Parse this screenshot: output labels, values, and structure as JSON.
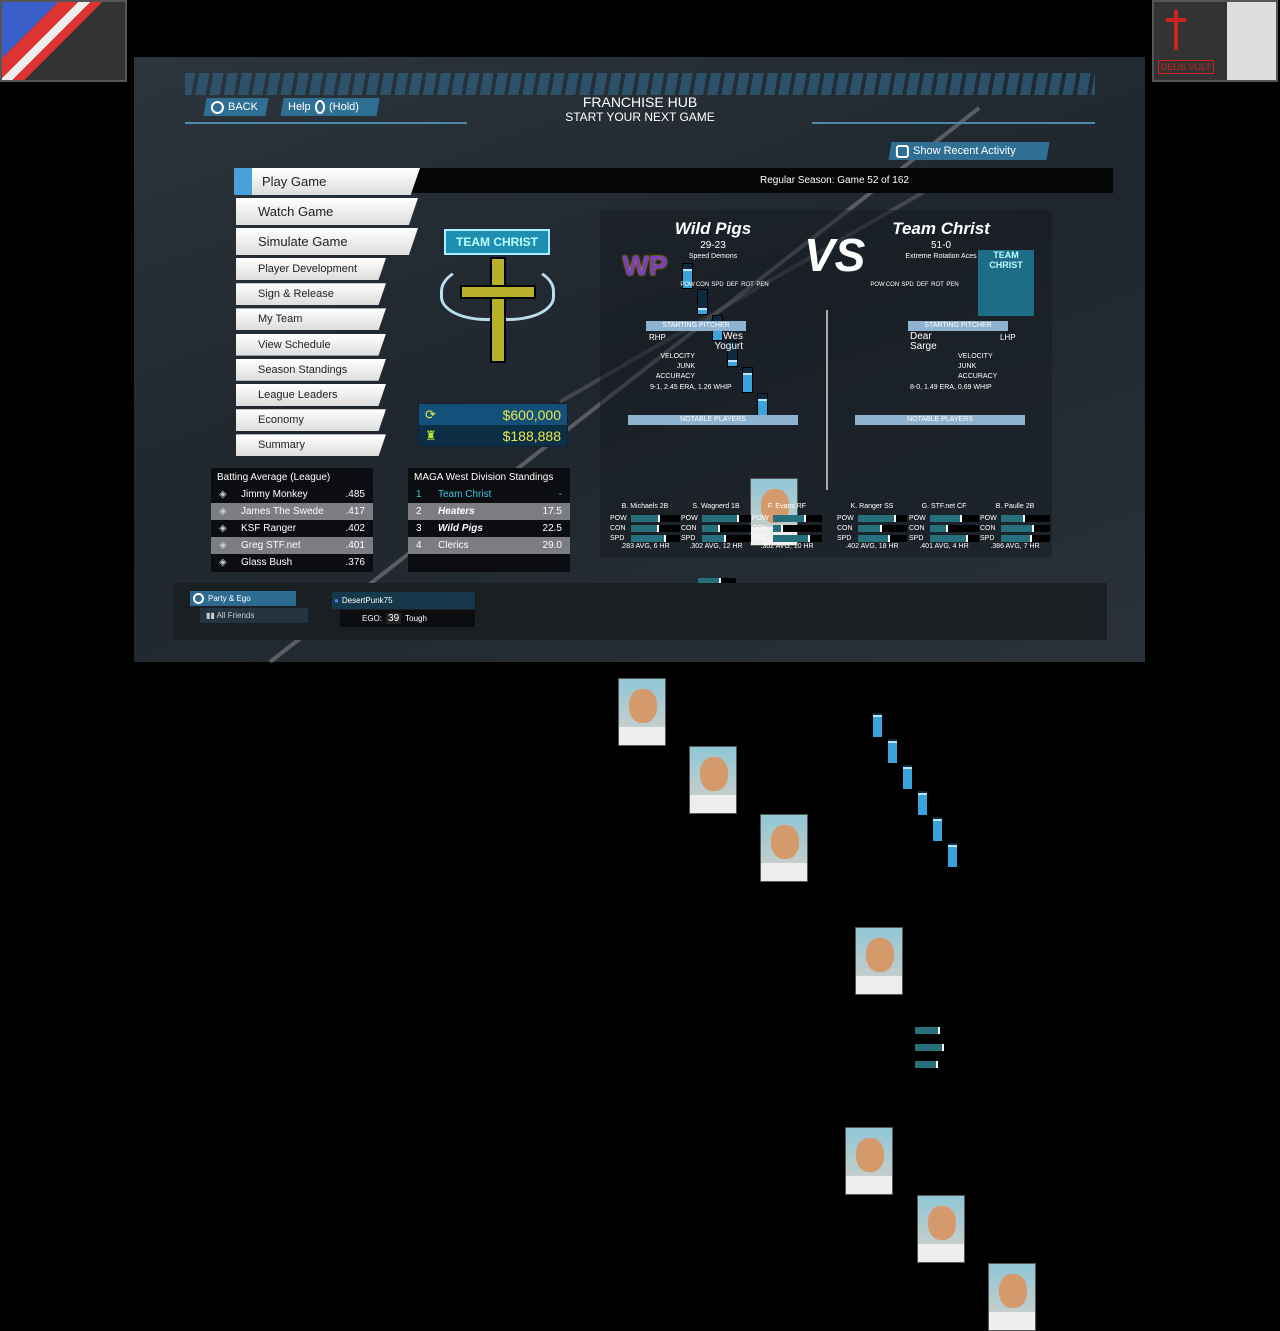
{
  "header": {
    "back_label": "BACK",
    "help_label": "Help",
    "help_hold": "(Hold)",
    "title": "FRANCHISE HUB",
    "subtitle": "START YOUR NEXT GAME",
    "recent_activity": "Show Recent Activity"
  },
  "season_status": "Regular Season: Game 52 of 162",
  "menu": [
    "Play Game",
    "Watch Game",
    "Simulate Game",
    "Player Development",
    "Sign & Release",
    "My Team",
    "View Schedule",
    "Season Standings",
    "League Leaders",
    "Economy",
    "Summary"
  ],
  "team_logo_text": "TEAM CHRIST",
  "money": {
    "budget": "$600,000",
    "payroll": "$188,888",
    "accent": "#e8e84a"
  },
  "batting": {
    "title": "Batting Average (League)",
    "rows": [
      {
        "name": "Jimmy Monkey",
        "avg": ".485"
      },
      {
        "name": "James The Swede",
        "avg": ".417"
      },
      {
        "name": "KSF Ranger",
        "avg": ".402"
      },
      {
        "name": "Greg STF.net",
        "avg": ".401"
      },
      {
        "name": "Glass Bush",
        "avg": ".376"
      }
    ]
  },
  "standings": {
    "title": "MAGA West Division Standings",
    "rows": [
      {
        "rank": "1",
        "team": "Team Christ",
        "gb": "-"
      },
      {
        "rank": "2",
        "team": "Heaters",
        "gb": "17.5"
      },
      {
        "rank": "3",
        "team": "Wild Pigs",
        "gb": "22.5"
      },
      {
        "rank": "4",
        "team": "Clerics",
        "gb": "29.0"
      }
    ]
  },
  "vs": "VS",
  "rating_labels": [
    "POW",
    "CON",
    "SPD",
    "DEF",
    "ROT",
    "PEN"
  ],
  "pitcher_labels": [
    "VELOCITY",
    "JUNK",
    "ACCURACY"
  ],
  "section_labels": {
    "pitcher": "STARTING PITCHER",
    "notable": "NOTABLE PLAYERS"
  },
  "stat_labels": [
    "POW",
    "CON",
    "SPD"
  ],
  "away": {
    "name": "Wild Pigs",
    "record": "29-23",
    "style": "Speed Demons",
    "logo_text": "WP",
    "ratings": [
      0.8,
      0.25,
      0.8,
      0.25,
      0.8,
      0.8
    ],
    "pitcher": {
      "hand": "RHP",
      "first": "Wes",
      "last": "Yogurt",
      "ratings": [
        0.6,
        0.6,
        0.65
      ],
      "line": "9-1, 2.45 ERA, 1.26 WHIP"
    },
    "players": [
      {
        "name": "B. Michaels",
        "pos": "2B",
        "stats": [
          0.6,
          0.58,
          0.72
        ],
        "line": ".283 AVG, 6 HR"
      },
      {
        "name": "S. Wagnerd",
        "pos": "1B",
        "stats": [
          0.75,
          0.38,
          0.5
        ],
        "line": ".302 AVG, 12 HR"
      },
      {
        "name": "F. Evans",
        "pos": "RF",
        "stats": [
          0.68,
          0.2,
          0.76
        ],
        "line": ".302 AVG, 10 HR"
      }
    ]
  },
  "home": {
    "name": "Team Christ",
    "record": "51-0",
    "style": "Extreme Rotation Aces",
    "logo_text": "TEAM CHRIST",
    "ratings": [
      0.9,
      0.9,
      0.9,
      0.9,
      0.9,
      0.9
    ],
    "pitcher": {
      "hand": "LHP",
      "first": "Dear",
      "last": "Sarge",
      "ratings": [
        0.65,
        0.75,
        0.6
      ],
      "line": "8-0, 1.49 ERA, 0.69 WHIP"
    },
    "players": [
      {
        "name": "K. Ranger",
        "pos": "SS",
        "stats": [
          0.78,
          0.5,
          0.66
        ],
        "line": ".402 AVG, 18 HR"
      },
      {
        "name": "G. STF.net",
        "pos": "CF",
        "stats": [
          0.66,
          0.38,
          0.77
        ],
        "line": ".401 AVG, 4 HR"
      },
      {
        "name": "B. Paulle",
        "pos": "2B",
        "stats": [
          0.5,
          0.67,
          0.64
        ],
        "line": ".386 AVG, 7 HR"
      }
    ]
  },
  "social": {
    "party_label": "Party & Ego",
    "friends_label": "All Friends",
    "user": "DesertPunk75",
    "ego_label": "EGO:",
    "ego_value": "39",
    "ego_type": "Tough"
  },
  "overlay": {
    "right_patch_text": "DEUS VULT"
  }
}
